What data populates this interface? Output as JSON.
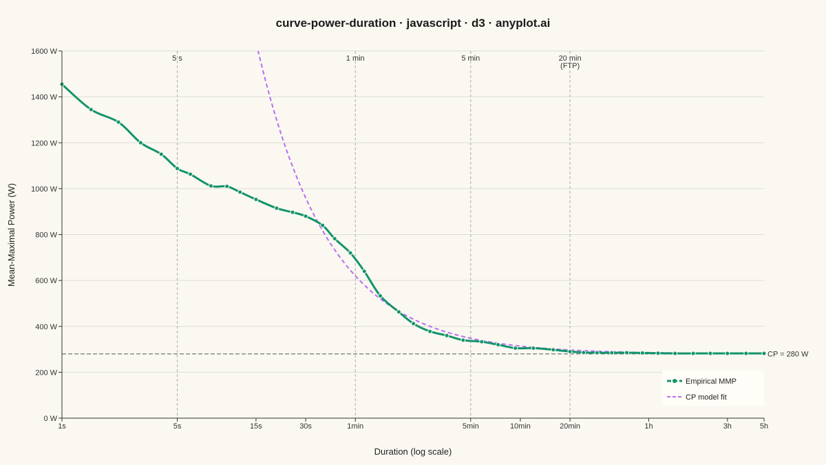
{
  "chart_data": {
    "type": "line",
    "title": "curve-power-duration · javascript · d3 · anyplot.ai",
    "xlabel": "Duration (log scale)",
    "ylabel": "Mean-Maximal Power (W)",
    "x_scale": "log",
    "xlim_seconds": [
      1,
      18000
    ],
    "ylim": [
      0,
      1600
    ],
    "x_ticks": [
      {
        "value": 1,
        "label": "1s"
      },
      {
        "value": 5,
        "label": "5s"
      },
      {
        "value": 15,
        "label": "15s"
      },
      {
        "value": 30,
        "label": "30s"
      },
      {
        "value": 60,
        "label": "1min"
      },
      {
        "value": 300,
        "label": "5min"
      },
      {
        "value": 600,
        "label": "10min"
      },
      {
        "value": 1200,
        "label": "20min"
      },
      {
        "value": 3600,
        "label": "1h"
      },
      {
        "value": 10800,
        "label": "3h"
      },
      {
        "value": 18000,
        "label": "5h"
      }
    ],
    "y_ticks": [
      {
        "value": 0,
        "label": "0 W"
      },
      {
        "value": 200,
        "label": "200 W"
      },
      {
        "value": 400,
        "label": "400 W"
      },
      {
        "value": 600,
        "label": "600 W"
      },
      {
        "value": 800,
        "label": "800 W"
      },
      {
        "value": 1000,
        "label": "1000 W"
      },
      {
        "value": 1200,
        "label": "1200 W"
      },
      {
        "value": 1400,
        "label": "1400 W"
      },
      {
        "value": 1600,
        "label": "1600 W"
      }
    ],
    "reference_lines": [
      {
        "value": 5,
        "label": "5 s"
      },
      {
        "value": 60,
        "label": "1 min"
      },
      {
        "value": 300,
        "label": "5 min"
      },
      {
        "value": 1200,
        "label": "20 min",
        "label2": "(FTP)"
      }
    ],
    "cp_line": {
      "value": 280,
      "label": "CP = 280 W"
    },
    "series": [
      {
        "name": "Empirical MMP",
        "color": "#12946B",
        "style": "solid-with-markers",
        "x": [
          1,
          1.5,
          2.2,
          3,
          4,
          5,
          6,
          8,
          10,
          12,
          15,
          20,
          25,
          30,
          38,
          45,
          56,
          68,
          85,
          110,
          135,
          170,
          215,
          270,
          350,
          440,
          560,
          720,
          950,
          1200,
          1450,
          1750,
          2150,
          2650,
          3300,
          4100,
          5200,
          6700,
          8500,
          10800,
          14000,
          18000
        ],
        "values": [
          1455,
          1345,
          1290,
          1200,
          1150,
          1088,
          1063,
          1012,
          1010,
          985,
          953,
          915,
          897,
          880,
          840,
          782,
          720,
          640,
          533,
          463,
          412,
          378,
          360,
          340,
          333,
          320,
          305,
          305,
          298,
          290,
          286,
          285,
          285,
          285,
          284,
          283,
          282,
          282,
          282,
          282,
          282,
          282
        ]
      },
      {
        "name": "CP model fit",
        "color": "#B76EF0",
        "style": "dashed",
        "cp": 280,
        "w_prime": 20400
      }
    ],
    "legend_position": "bottom-right",
    "grid": "horizontal"
  }
}
